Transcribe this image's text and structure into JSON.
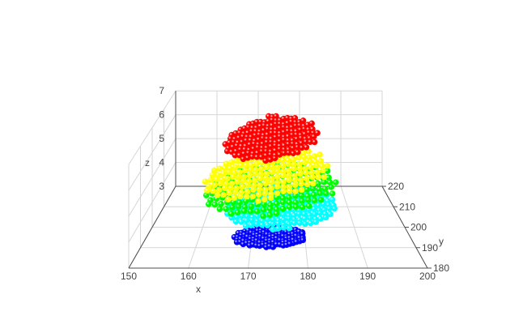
{
  "chart_data": {
    "type": "scatter3d",
    "xlabel": "x",
    "ylabel": "y",
    "zlabel": "z",
    "xlim": [
      150,
      200
    ],
    "ylim": [
      180,
      220
    ],
    "zlim": [
      3,
      7
    ],
    "x_ticks": [
      150,
      160,
      170,
      180,
      190,
      200
    ],
    "y_ticks": [
      180,
      190,
      200,
      210,
      220
    ],
    "z_ticks": [
      3,
      4,
      5,
      6,
      7
    ],
    "grid": true,
    "marker": "sphere",
    "series": [
      {
        "color": "#0000ff",
        "z": 3.7,
        "x_range": [
          166.7,
          179.3
        ],
        "y_range": [
          181.5,
          191.5
        ],
        "center": [
          173.6,
          186.5
        ],
        "tilt": 0.02
      },
      {
        "color": "#00ffff",
        "z": 4.15,
        "x_range": [
          164.5,
          185.5
        ],
        "y_range": [
          185,
          207
        ],
        "center": [
          175.5,
          196
        ],
        "tilt": 0.04
      },
      {
        "color": "#00ff00",
        "z": 4.45,
        "x_range": [
          160.5,
          186.5
        ],
        "y_range": [
          188,
          215
        ],
        "center": [
          173.5,
          201.5
        ],
        "tilt": 0.1
      },
      {
        "color": "#ffff00",
        "z": 4.9,
        "x_range": [
          160,
          185
        ],
        "y_range": [
          190,
          217
        ],
        "center": [
          172.5,
          203.5
        ],
        "tilt": 0.13
      },
      {
        "color": "#ff0000",
        "z": 6.25,
        "x_range": [
          164,
          183
        ],
        "y_range": [
          193,
          216
        ],
        "center": [
          173.5,
          204.5
        ],
        "tilt": 0.12
      }
    ]
  }
}
